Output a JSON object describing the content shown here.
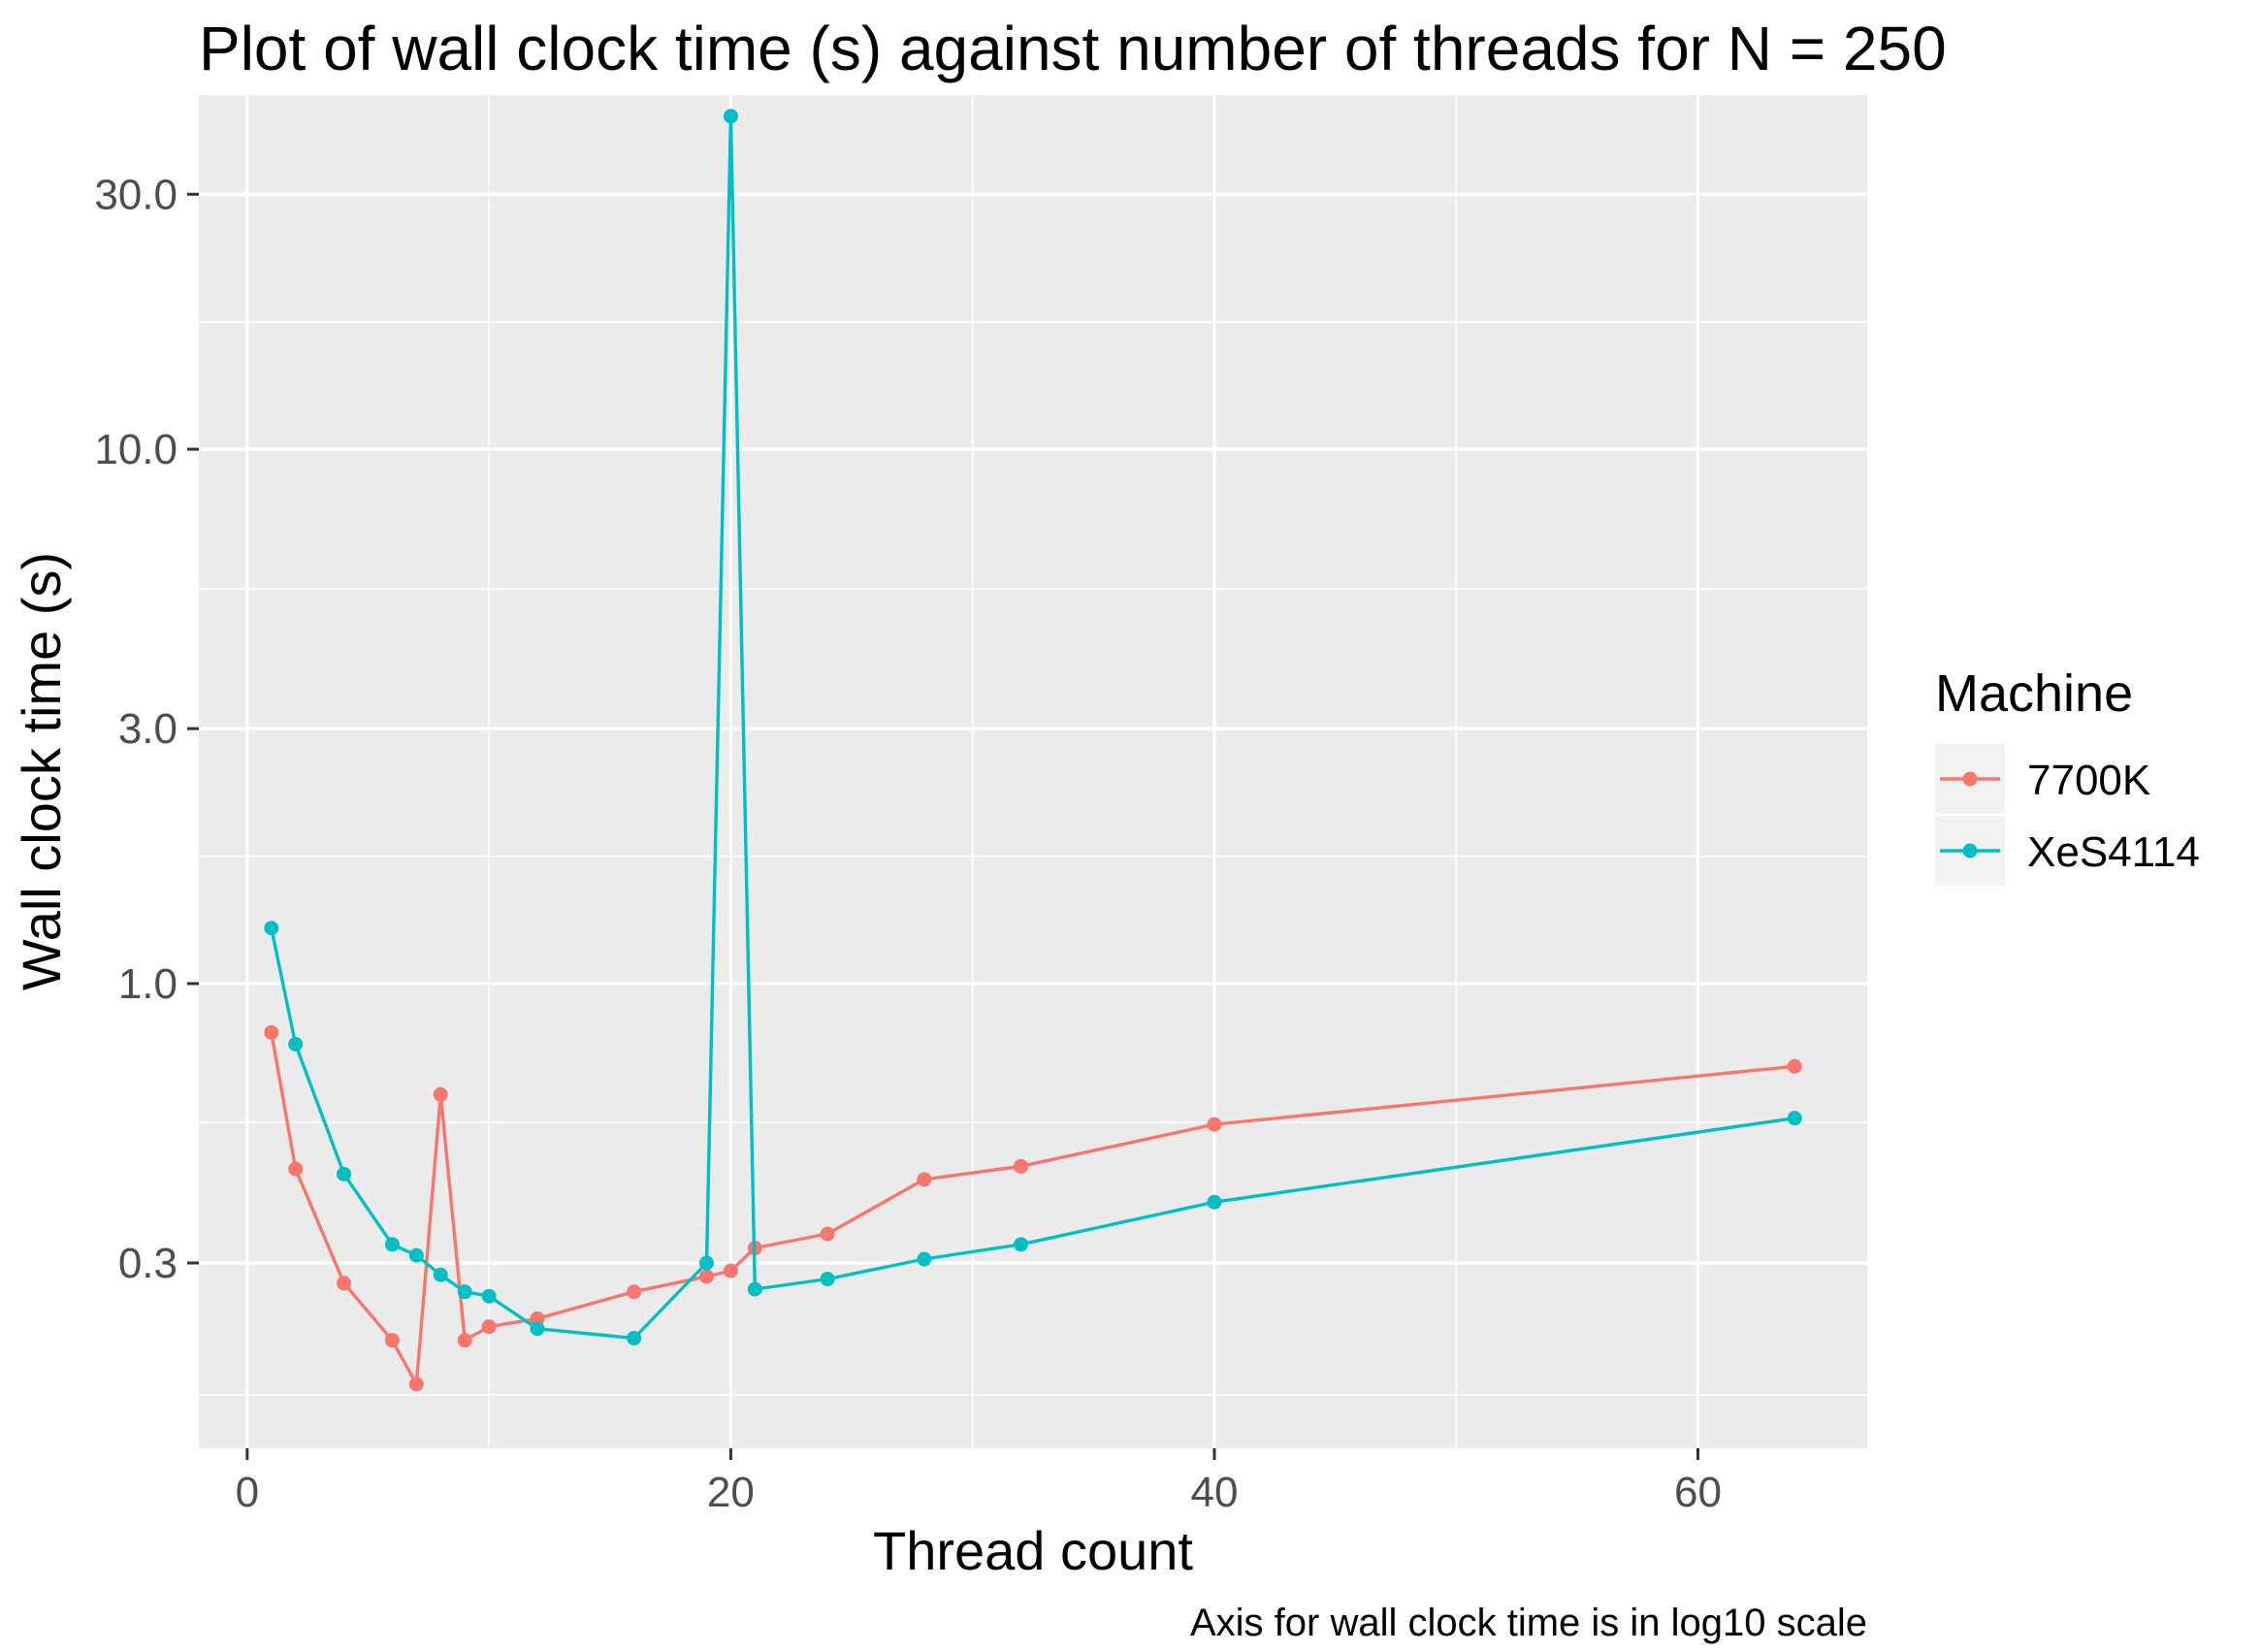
{
  "chart_data": {
    "type": "line",
    "title": "Plot of wall clock time (s) against number of threads for N = 250",
    "xlabel": "Thread count",
    "ylabel": "Wall clock time (s)",
    "caption": "Axis for wall clock time is in log10 scale",
    "x_scale": "linear",
    "y_scale": "log10",
    "xlim": [
      -2,
      67
    ],
    "ylim": [
      0.135,
      46
    ],
    "x_ticks": [
      0,
      20,
      40,
      60
    ],
    "x_tick_labels": [
      "0",
      "20",
      "40",
      "60"
    ],
    "y_ticks": [
      0.3,
      1,
      3,
      10,
      30
    ],
    "y_tick_labels": [
      "0.3",
      "1.0",
      "3.0",
      "10.0",
      "30.0"
    ],
    "x_minor_ticks": [
      10,
      30,
      50
    ],
    "y_minor_ticks": [
      0.17,
      0.55,
      1.73,
      5.48,
      17.3
    ],
    "grid": true,
    "background": "#EBEBEB",
    "legend": {
      "title": "Machine",
      "placement": "right"
    },
    "series": [
      {
        "name": "7700K",
        "color": "#F8766D",
        "x": [
          1,
          2,
          4,
          6,
          7,
          8,
          9,
          10,
          12,
          16,
          19,
          20,
          21,
          24,
          28,
          32,
          40,
          64
        ],
        "y": [
          0.81,
          0.45,
          0.275,
          0.215,
          0.178,
          0.62,
          0.215,
          0.228,
          0.236,
          0.265,
          0.283,
          0.29,
          0.32,
          0.34,
          0.43,
          0.455,
          0.545,
          0.7
        ]
      },
      {
        "name": "XeS4114",
        "color": "#00BFC4",
        "x": [
          1,
          2,
          4,
          6,
          7,
          8,
          9,
          10,
          12,
          16,
          19,
          20,
          21,
          24,
          28,
          32,
          40,
          64
        ],
        "y": [
          1.27,
          0.77,
          0.44,
          0.325,
          0.31,
          0.285,
          0.265,
          0.26,
          0.226,
          0.217,
          0.3,
          42,
          0.268,
          0.28,
          0.305,
          0.325,
          0.39,
          0.56
        ]
      }
    ]
  }
}
